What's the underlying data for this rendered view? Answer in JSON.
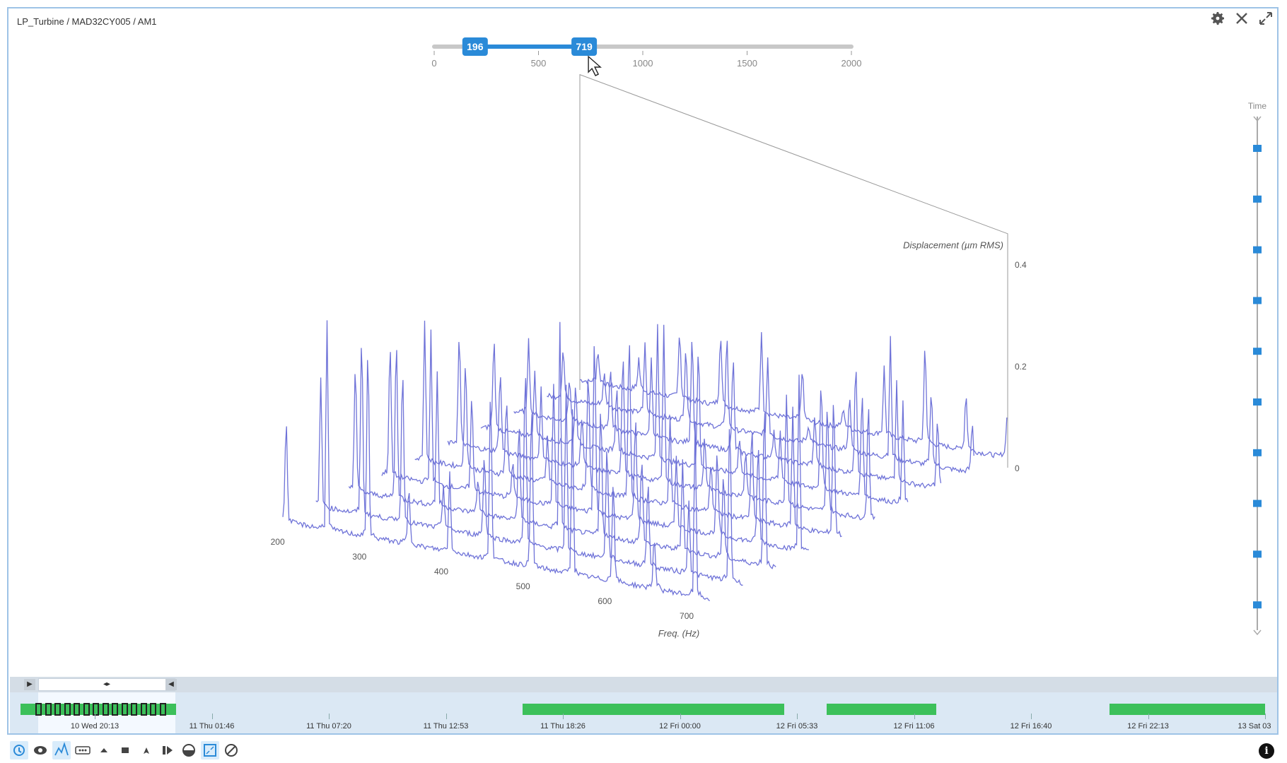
{
  "breadcrumb": "LP_Turbine / MAD32CY005 / AM1",
  "icons": {
    "settings": "gear-icon",
    "close": "close-icon",
    "expand": "expand-icon"
  },
  "range_slider": {
    "min": 0,
    "max": 2000,
    "low": 196,
    "high": 719,
    "low_label": "196",
    "high_label": "719",
    "ticks": [
      "0",
      "500",
      "1000",
      "1500",
      "2000"
    ],
    "accent": "#2a8ad8"
  },
  "chart_data": {
    "type": "waterfall",
    "x_title": "Freq. (Hz)",
    "z_title": "Displacement (µm RMS)",
    "time_title": "Time",
    "freq_ticks": [
      "200",
      "300",
      "400",
      "500",
      "600",
      "700"
    ],
    "amp_ticks": [
      "0",
      "0.2",
      "0.4"
    ],
    "freq_range": [
      196,
      719
    ],
    "amp_range": [
      0,
      0.5
    ],
    "series_count": 10,
    "harmonic_hz": [
      200,
      250,
      300,
      350,
      400,
      450,
      500,
      550,
      600,
      650,
      700
    ],
    "line_color": "#6f73d8"
  },
  "scroll": {
    "left_btn": "▶",
    "right_btn": "◀",
    "thumb": "◂▸"
  },
  "timeline": {
    "labels": [
      "10 Wed 20:13",
      "11 Thu 01:46",
      "11 Thu 07:20",
      "11 Thu 12:53",
      "11 Thu 18:26",
      "12 Fri 00:00",
      "12 Fri 05:33",
      "12 Fri 11:06",
      "12 Fri 16:40",
      "12 Fri 22:13",
      "13 Sat 03"
    ],
    "bar_color": "#3cc05a"
  },
  "toolbar": [
    "history-icon",
    "eye-icon",
    "trend-icon",
    "dots-icon",
    "marker-icon",
    "stack-icon",
    "cursor-icon",
    "bands-icon",
    "half-circle-icon",
    "zoom-fit-icon",
    "disable-icon"
  ],
  "info": "i"
}
